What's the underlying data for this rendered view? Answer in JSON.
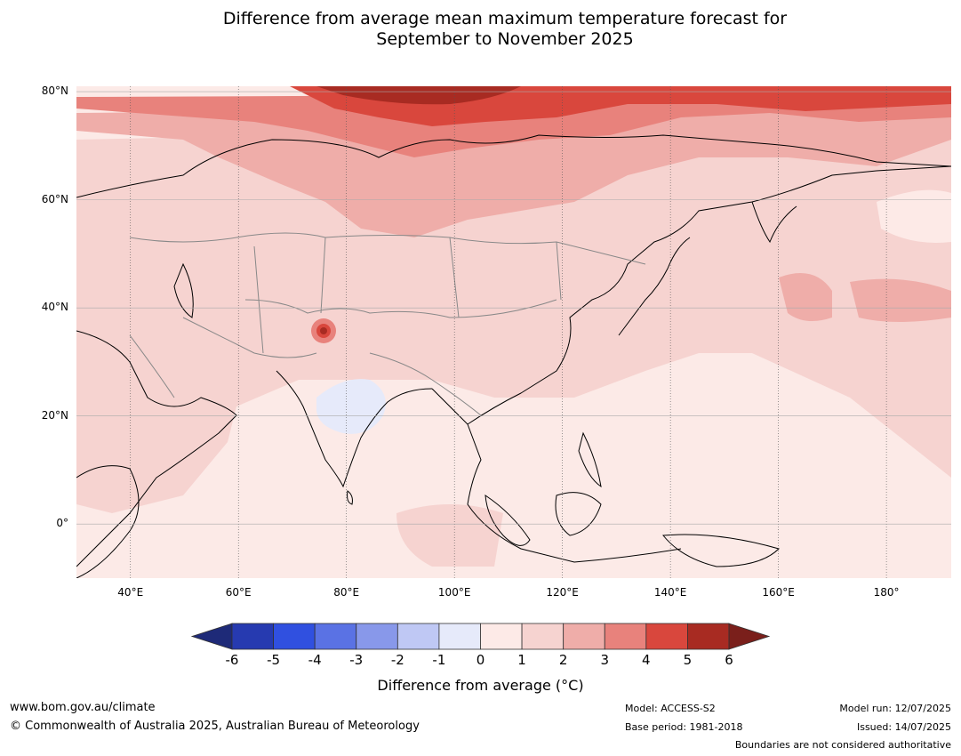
{
  "header": {
    "title_line1": "Difference from average mean maximum temperature forecast for",
    "title_line2": "September to November 2025"
  },
  "map": {
    "lat_labels": [
      {
        "text": "80°N",
        "lat": 80
      },
      {
        "text": "60°N",
        "lat": 60
      },
      {
        "text": "40°N",
        "lat": 40
      },
      {
        "text": "20°N",
        "lat": 20
      },
      {
        "text": "0°",
        "lat": 0
      }
    ],
    "lon_labels": [
      {
        "text": "40°E",
        "lon": 40
      },
      {
        "text": "60°E",
        "lon": 60
      },
      {
        "text": "80°E",
        "lon": 80
      },
      {
        "text": "100°E",
        "lon": 100
      },
      {
        "text": "120°E",
        "lon": 120
      },
      {
        "text": "140°E",
        "lon": 140
      },
      {
        "text": "160°E",
        "lon": 160
      },
      {
        "text": "180°",
        "lon": 180
      }
    ],
    "lon_range": [
      30,
      192
    ],
    "lat_range": [
      -10,
      81
    ]
  },
  "colorbar": {
    "ticks": [
      "-6",
      "-5",
      "-4",
      "-3",
      "-2",
      "-1",
      "0",
      "1",
      "2",
      "3",
      "4",
      "5",
      "6"
    ],
    "colors": {
      "below_min": "#1e2a78",
      "bins": [
        "#263ab0",
        "#3050e0",
        "#5a72e4",
        "#8898ea",
        "#bfc8f4",
        "#e6eafa",
        "#fdeae7",
        "#f6d3d0",
        "#efada9",
        "#e8827c",
        "#d9473d",
        "#a82b22"
      ],
      "above_max": "#7a1f1b"
    },
    "label": "Difference from average (°C)"
  },
  "footer": {
    "website": "www.bom.gov.au/climate",
    "copyright": "© Commonwealth of Australia 2025, Australian Bureau of Meteorology",
    "model": "Model: ACCESS-S2",
    "base_period": "Base period: 1981-2018",
    "model_run": "Model run: 12/07/2025",
    "issued": "Issued: 14/07/2025",
    "disclaimer": "Boundaries are not considered authoritative"
  }
}
